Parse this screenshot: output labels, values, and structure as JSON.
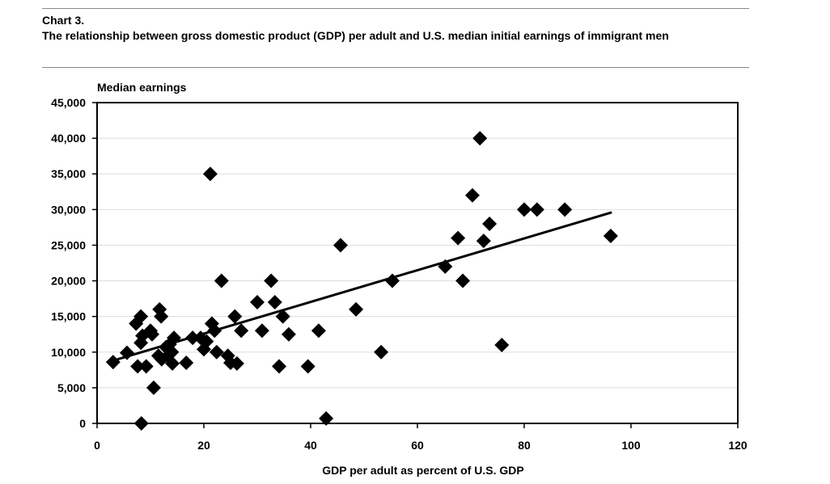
{
  "header": {
    "label": "Chart 3.",
    "title": "The relationship between gross domestic product (GDP) per adult and U.S. median initial earnings of immigrant men"
  },
  "chart_data": {
    "type": "scatter",
    "title": "The relationship between gross domestic product (GDP) per adult and U.S. median initial earnings of immigrant men",
    "xlabel": "GDP per adult as percent of U.S. GDP",
    "ylabel": "Median earnings",
    "xlim": [
      0,
      120
    ],
    "ylim": [
      0,
      45000
    ],
    "xticks": [
      0,
      20,
      40,
      60,
      80,
      100,
      120
    ],
    "yticks": [
      0,
      5000,
      10000,
      15000,
      20000,
      25000,
      30000,
      35000,
      40000,
      45000
    ],
    "xtick_labels": [
      "0",
      "20",
      "40",
      "60",
      "80",
      "100",
      "120"
    ],
    "ytick_labels": [
      "0",
      "5,000",
      "10,000",
      "15,000",
      "20,000",
      "25,000",
      "30,000",
      "35,000",
      "40,000",
      "45,000"
    ],
    "grid": "horizontal",
    "marker": "diamond",
    "points": [
      [
        3,
        8600
      ],
      [
        5.6,
        9900
      ],
      [
        7.3,
        14000
      ],
      [
        8.2,
        15000
      ],
      [
        7.6,
        8000
      ],
      [
        8.2,
        11300
      ],
      [
        8.5,
        12300
      ],
      [
        8.3,
        0
      ],
      [
        9.2,
        8000
      ],
      [
        10,
        13000
      ],
      [
        10.6,
        5000
      ],
      [
        10.3,
        12500
      ],
      [
        11.7,
        16000
      ],
      [
        12,
        15000
      ],
      [
        11.5,
        9500
      ],
      [
        12.1,
        9000
      ],
      [
        12.9,
        10700
      ],
      [
        13.3,
        9500
      ],
      [
        13.6,
        11100
      ],
      [
        14.1,
        8400
      ],
      [
        14.4,
        12000
      ],
      [
        14,
        10000
      ],
      [
        16.7,
        8500
      ],
      [
        17.9,
        12000
      ],
      [
        19.4,
        12000
      ],
      [
        20,
        10400
      ],
      [
        20.5,
        11500
      ],
      [
        21.2,
        35000
      ],
      [
        21.5,
        14000
      ],
      [
        22,
        13000
      ],
      [
        22.4,
        10000
      ],
      [
        23.3,
        20000
      ],
      [
        24.5,
        9500
      ],
      [
        25,
        8500
      ],
      [
        25.8,
        15000
      ],
      [
        26.2,
        8400
      ],
      [
        27,
        13000
      ],
      [
        30,
        17000
      ],
      [
        30.9,
        13000
      ],
      [
        32.6,
        20000
      ],
      [
        33.3,
        17000
      ],
      [
        34.1,
        8000
      ],
      [
        34.8,
        15000
      ],
      [
        35.9,
        12500
      ],
      [
        39.5,
        8000
      ],
      [
        41.5,
        13000
      ],
      [
        42.9,
        700
      ],
      [
        45.6,
        25000
      ],
      [
        48.5,
        16000
      ],
      [
        53.2,
        10000
      ],
      [
        55.3,
        20000
      ],
      [
        65.2,
        22000
      ],
      [
        67.6,
        26000
      ],
      [
        68.5,
        20000
      ],
      [
        70.3,
        32000
      ],
      [
        71.7,
        40000
      ],
      [
        72.4,
        25600
      ],
      [
        73.5,
        28000
      ],
      [
        75.8,
        11000
      ],
      [
        80,
        30000
      ],
      [
        82.4,
        30000
      ],
      [
        87.6,
        30000
      ],
      [
        96.2,
        26300
      ]
    ],
    "trendline": {
      "x": [
        3,
        96.4
      ],
      "y": [
        8800,
        29600
      ]
    }
  }
}
